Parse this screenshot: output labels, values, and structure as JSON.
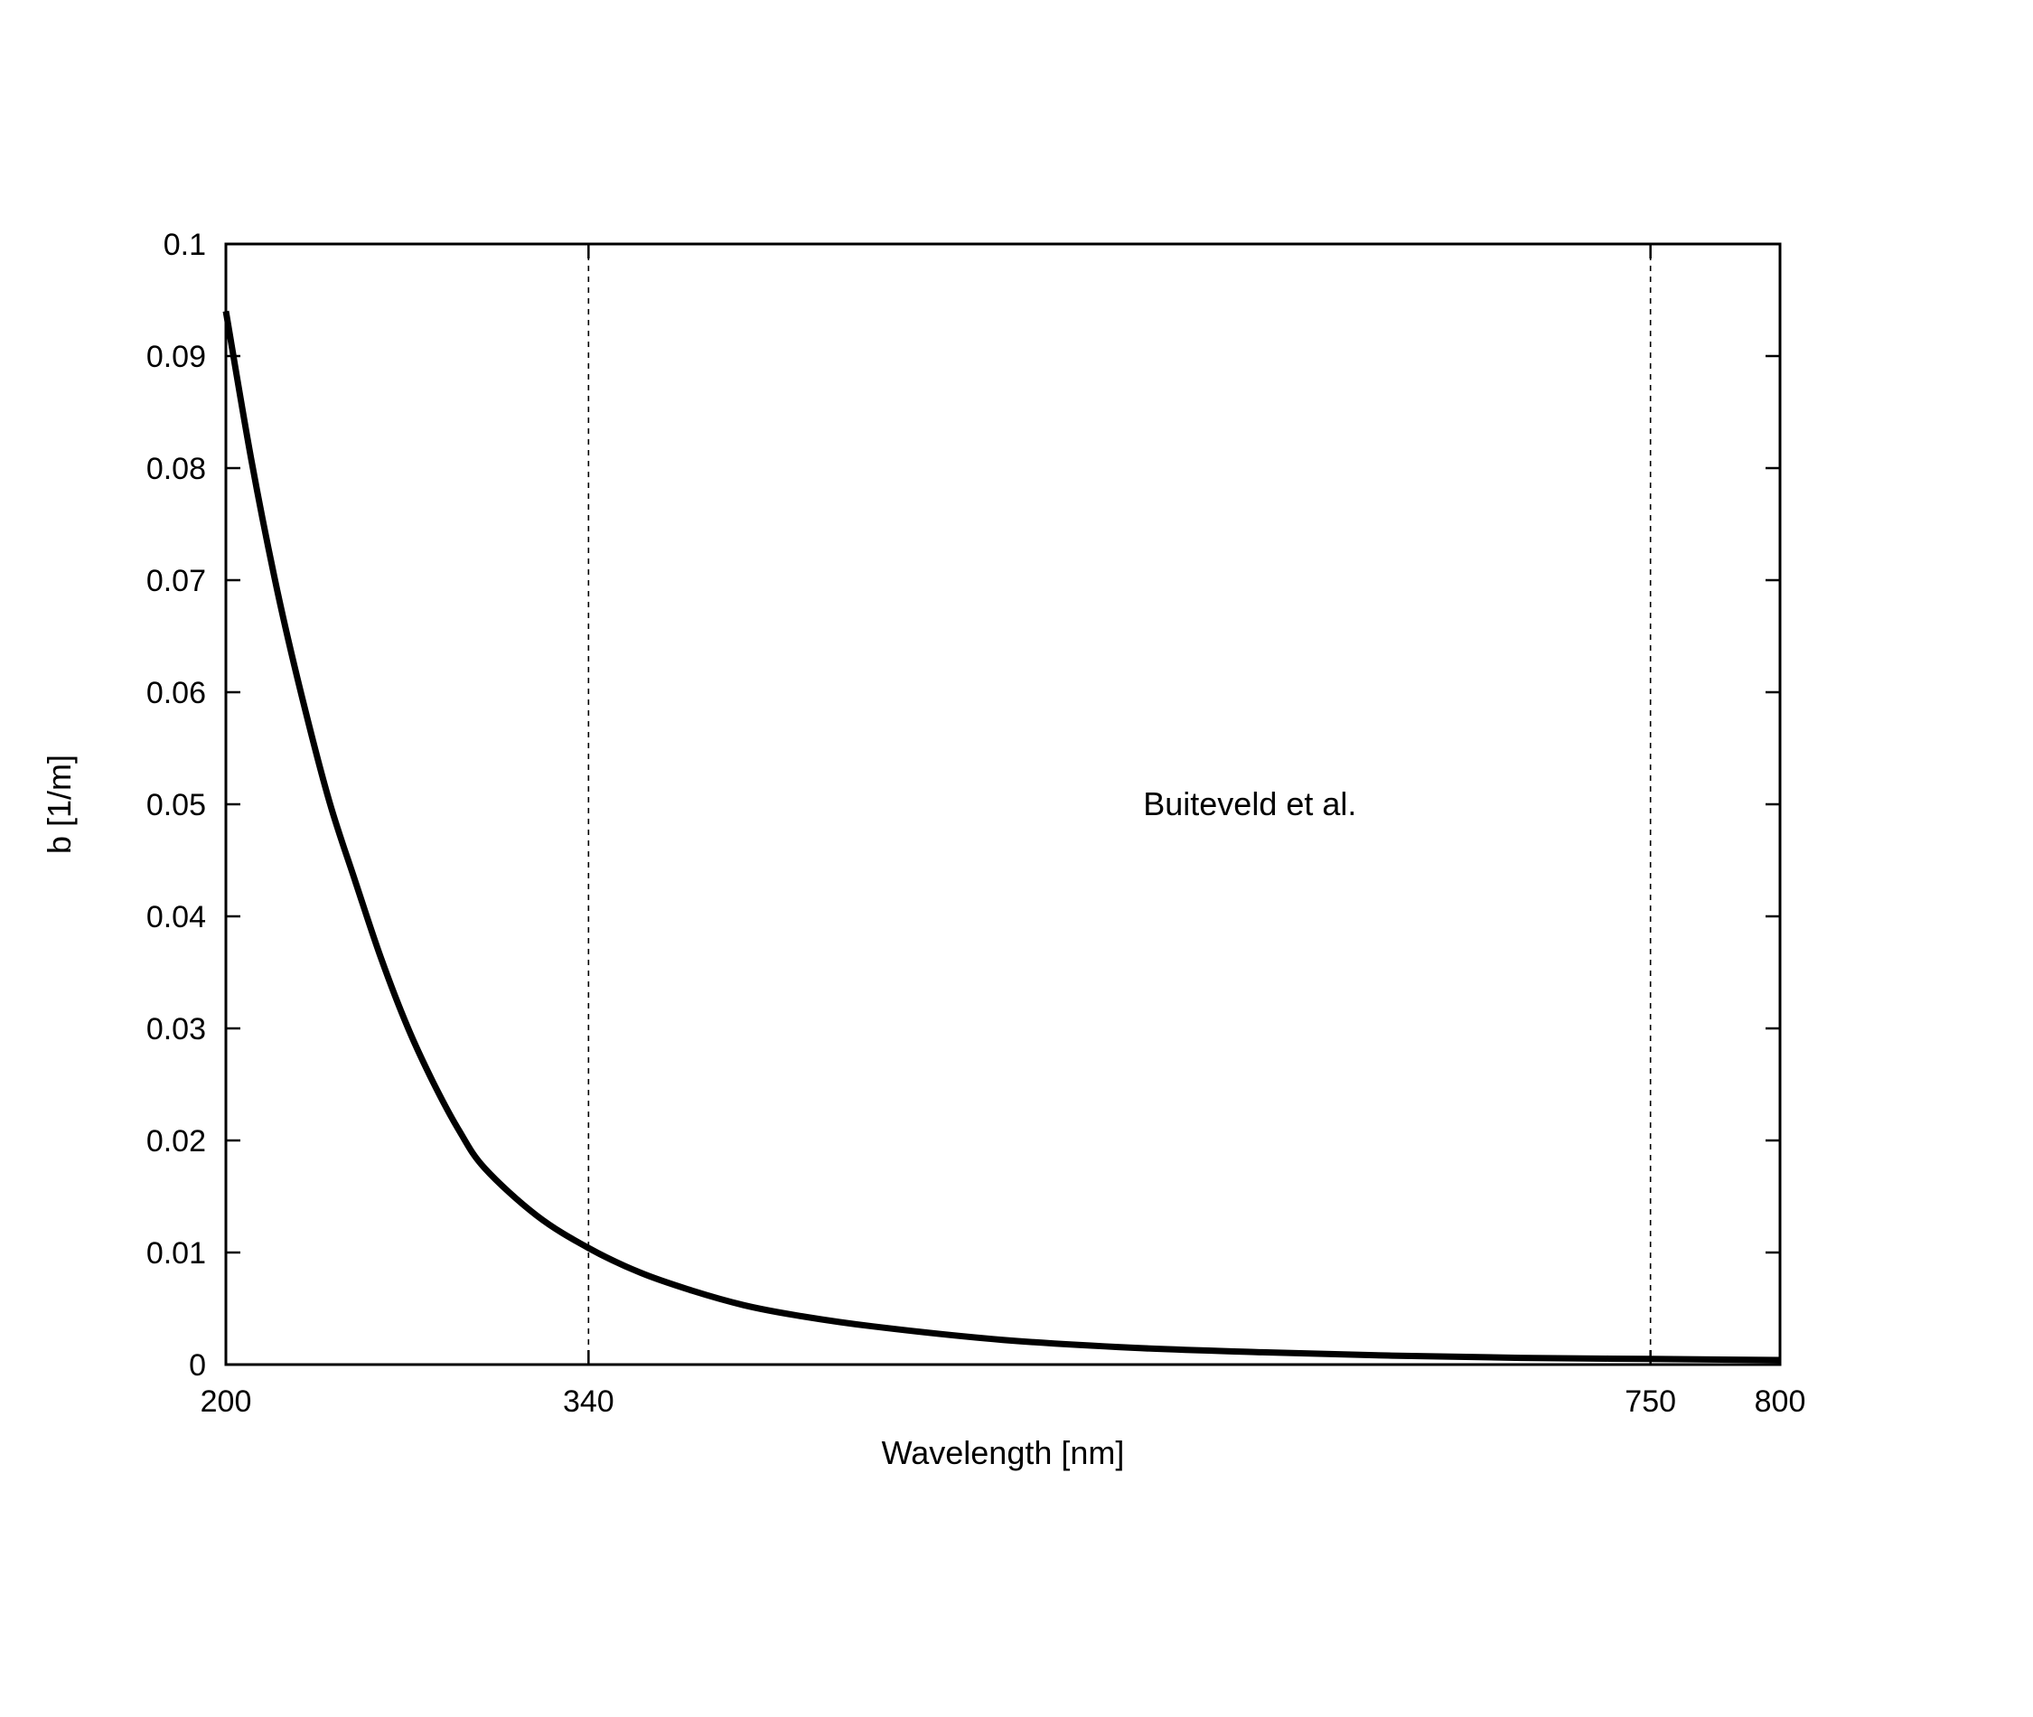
{
  "chart_data": {
    "type": "line",
    "title": "",
    "xlabel": "Wavelength [nm]",
    "ylabel": "b [1/m]",
    "xlim": [
      200,
      800
    ],
    "ylim": [
      0,
      0.1
    ],
    "xticks": [
      200,
      340,
      750,
      800
    ],
    "yticks": [
      0,
      0.01,
      0.02,
      0.03,
      0.04,
      0.05,
      0.06,
      0.07,
      0.08,
      0.09,
      0.1
    ],
    "xtick_labels": [
      "200",
      "340",
      "750",
      "800"
    ],
    "ytick_labels": [
      "0",
      "0.01",
      "0.02",
      "0.03",
      "0.04",
      "0.05",
      "0.06",
      "0.07",
      "0.08",
      "0.09",
      "0.1"
    ],
    "vlines": [
      340,
      750
    ],
    "annotation": {
      "text": "Buiteveld et al.",
      "x": 550,
      "y": 0.05
    },
    "grid": false,
    "series": [
      {
        "x": [
          200,
          210,
          220,
          230,
          240,
          250,
          260,
          270,
          280,
          290,
          300,
          320,
          340,
          360,
          380,
          400,
          420,
          450,
          500,
          550,
          600,
          650,
          700,
          750,
          800
        ],
        "y": [
          0.094,
          0.0805,
          0.0689,
          0.059,
          0.0502,
          0.0431,
          0.0362,
          0.0302,
          0.0252,
          0.0209,
          0.0175,
          0.0133,
          0.0104,
          0.0082,
          0.0066,
          0.0053,
          0.0044,
          0.0034,
          0.0022,
          0.0015,
          0.0011,
          0.0008,
          0.0006,
          0.0005,
          0.0004
        ],
        "color": "#000000"
      }
    ]
  }
}
